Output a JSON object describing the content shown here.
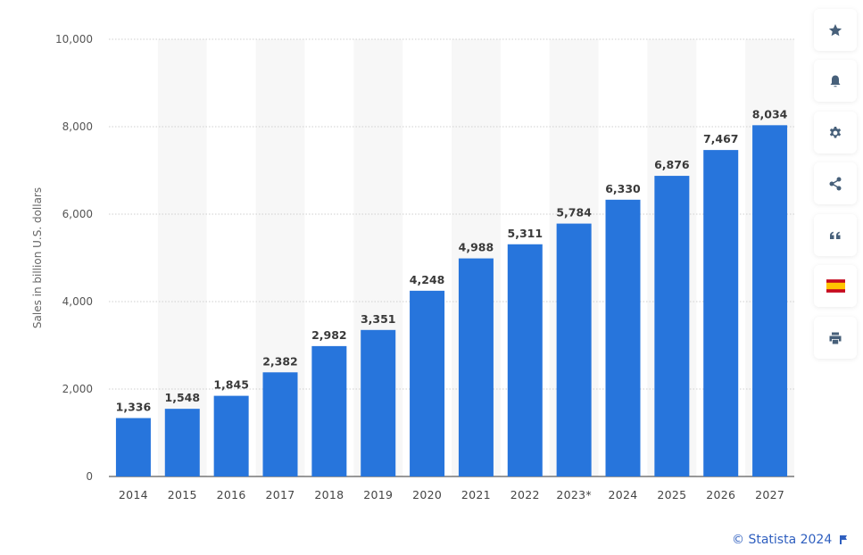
{
  "chart_data": {
    "type": "bar",
    "title": "",
    "xlabel": "",
    "ylabel": "Sales in billion U.S. dollars",
    "categories": [
      "2014",
      "2015",
      "2016",
      "2017",
      "2018",
      "2019",
      "2020",
      "2021",
      "2022",
      "2023*",
      "2024",
      "2025",
      "2026",
      "2027"
    ],
    "values": [
      1336,
      1548,
      1845,
      2382,
      2982,
      3351,
      4248,
      4988,
      5311,
      5784,
      6330,
      6876,
      7467,
      8034
    ],
    "value_labels": [
      "1,336",
      "1,548",
      "1,845",
      "2,382",
      "2,982",
      "3,351",
      "4,248",
      "4,988",
      "5,311",
      "5,784",
      "6,330",
      "6,876",
      "7,467",
      "8,034"
    ],
    "ylim": [
      0,
      10000
    ],
    "yticks": [
      0,
      2000,
      4000,
      6000,
      8000,
      10000
    ],
    "ytick_labels": [
      "0",
      "2,000",
      "4,000",
      "6,000",
      "8,000",
      "10,000"
    ],
    "grid": true,
    "bar_color": "#2775dc",
    "alternating_column_shading": "#f7f7f7"
  },
  "sidebar": {
    "buttons": [
      {
        "name": "star-icon"
      },
      {
        "name": "bell-icon"
      },
      {
        "name": "gear-icon"
      },
      {
        "name": "share-icon"
      },
      {
        "name": "quote-icon"
      },
      {
        "name": "spain-flag-icon"
      },
      {
        "name": "print-icon"
      }
    ]
  },
  "credit": {
    "text": "© Statista 2024",
    "color": "#2f5fbf"
  }
}
